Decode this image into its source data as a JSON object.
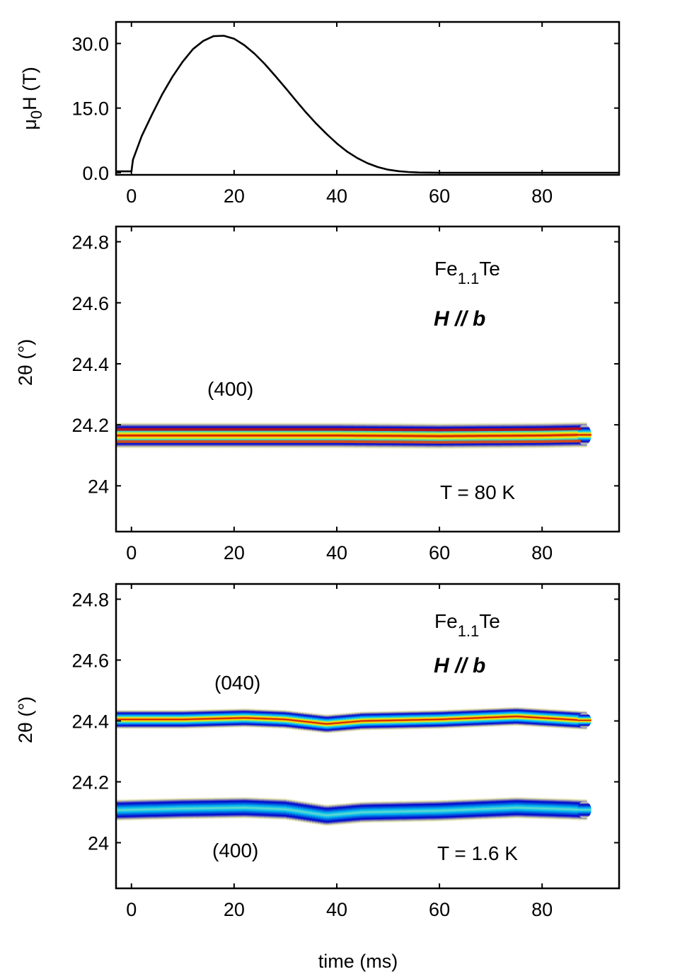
{
  "chart_data": [
    {
      "type": "line",
      "panel": "field-pulse",
      "ylabel": "μ0H (T)",
      "ylabel_parts": {
        "mu": "μ",
        "mu_sub": "0",
        "main": "H (T)"
      },
      "xlim": [
        -3,
        95
      ],
      "ylim": [
        -0.5,
        35.0
      ],
      "xticks": [
        0,
        20,
        40,
        60,
        80
      ],
      "xtick_labels": [
        "0",
        "20",
        "40",
        "60",
        "80"
      ],
      "yticks": [
        0,
        15,
        30
      ],
      "ytick_labels": [
        "0.0",
        "15.0",
        "30.0"
      ],
      "series": [
        {
          "name": "μ0H",
          "x": [
            -3,
            0,
            0.3,
            2,
            4,
            6,
            8,
            10,
            12,
            14,
            16,
            18,
            20,
            22,
            24,
            26,
            28,
            30,
            32,
            34,
            36,
            38,
            40,
            42,
            44,
            46,
            48,
            50,
            52,
            54,
            56,
            58,
            60,
            70,
            80,
            95
          ],
          "y": [
            0.3,
            0.3,
            3.0,
            8.5,
            13.5,
            18.2,
            22.3,
            25.8,
            28.7,
            30.6,
            31.7,
            31.8,
            31.1,
            29.6,
            27.6,
            25.2,
            22.5,
            19.7,
            16.8,
            14.0,
            11.4,
            9.0,
            6.8,
            4.9,
            3.4,
            2.2,
            1.3,
            0.7,
            0.35,
            0.15,
            0.05,
            0.02,
            0.0,
            0.0,
            0.0,
            0.0
          ]
        }
      ]
    },
    {
      "type": "heatmap",
      "panel": "T=80K",
      "ylabel": "2θ (°)",
      "xlim": [
        -3,
        95
      ],
      "ylim": [
        23.85,
        24.85
      ],
      "xticks": [
        0,
        20,
        40,
        60,
        80
      ],
      "xtick_labels": [
        "0",
        "20",
        "40",
        "60",
        "80"
      ],
      "yticks": [
        24.0,
        24.2,
        24.4,
        24.6,
        24.8
      ],
      "ytick_labels": [
        "24",
        "24.2",
        "24.4",
        "24.6",
        "24.8"
      ],
      "colormap": [
        "#ddddaa",
        "#0000cc",
        "#00ccff",
        "#ffee00",
        "#cc0000"
      ],
      "peaks": [
        {
          "label": "(400)",
          "center": [
            [
              -3,
              24.165
            ],
            [
              10,
              24.165
            ],
            [
              20,
              24.165
            ],
            [
              40,
              24.165
            ],
            [
              60,
              24.163
            ],
            [
              80,
              24.165
            ],
            [
              87,
              24.167
            ]
          ],
          "x_end": 88.5,
          "halfwidth": 0.043,
          "intensity": 1.0,
          "core_ridges": [
            24.145,
            24.185
          ]
        }
      ],
      "annotations": {
        "compound_base": "Fe",
        "compound_sub": "1.1",
        "compound_tail": "Te",
        "field_dir": "H // b",
        "temperature": "T = 80 K",
        "peak_label": "(400)"
      }
    },
    {
      "type": "heatmap",
      "panel": "T=1.6K",
      "ylabel": "2θ (°)",
      "xlabel": "time (ms)",
      "xlim": [
        -3,
        95
      ],
      "ylim": [
        23.85,
        24.85
      ],
      "xticks": [
        0,
        20,
        40,
        60,
        80
      ],
      "xtick_labels": [
        "0",
        "20",
        "40",
        "60",
        "80"
      ],
      "yticks": [
        24.0,
        24.2,
        24.4,
        24.6,
        24.8
      ],
      "ytick_labels": [
        "24",
        "24.2",
        "24.4",
        "24.6",
        "24.8"
      ],
      "colormap": [
        "#ddddaa",
        "#0000cc",
        "#00ccff",
        "#ffee00",
        "#cc0000"
      ],
      "peaks": [
        {
          "label": "(040)",
          "center": [
            [
              -3,
              24.405
            ],
            [
              10,
              24.405
            ],
            [
              22,
              24.41
            ],
            [
              30,
              24.405
            ],
            [
              38,
              24.39
            ],
            [
              45,
              24.4
            ],
            [
              60,
              24.405
            ],
            [
              75,
              24.415
            ],
            [
              85,
              24.405
            ],
            [
              88,
              24.402
            ]
          ],
          "x_end": 88.5,
          "halfwidth": 0.032,
          "intensity": 1.0
        },
        {
          "label": "(400)",
          "center": [
            [
              -3,
              24.107
            ],
            [
              10,
              24.112
            ],
            [
              22,
              24.115
            ],
            [
              30,
              24.11
            ],
            [
              38,
              24.09
            ],
            [
              45,
              24.1
            ],
            [
              60,
              24.105
            ],
            [
              75,
              24.115
            ],
            [
              85,
              24.11
            ],
            [
              88,
              24.108
            ]
          ],
          "x_end": 88.5,
          "halfwidth": 0.036,
          "intensity": 0.55
        }
      ],
      "annotations": {
        "compound_base": "Fe",
        "compound_sub": "1.1",
        "compound_tail": "Te",
        "field_dir": "H // b",
        "temperature": "T = 1.6 K",
        "peak_label_top": "(040)",
        "peak_label_bottom": "(400)"
      }
    }
  ]
}
